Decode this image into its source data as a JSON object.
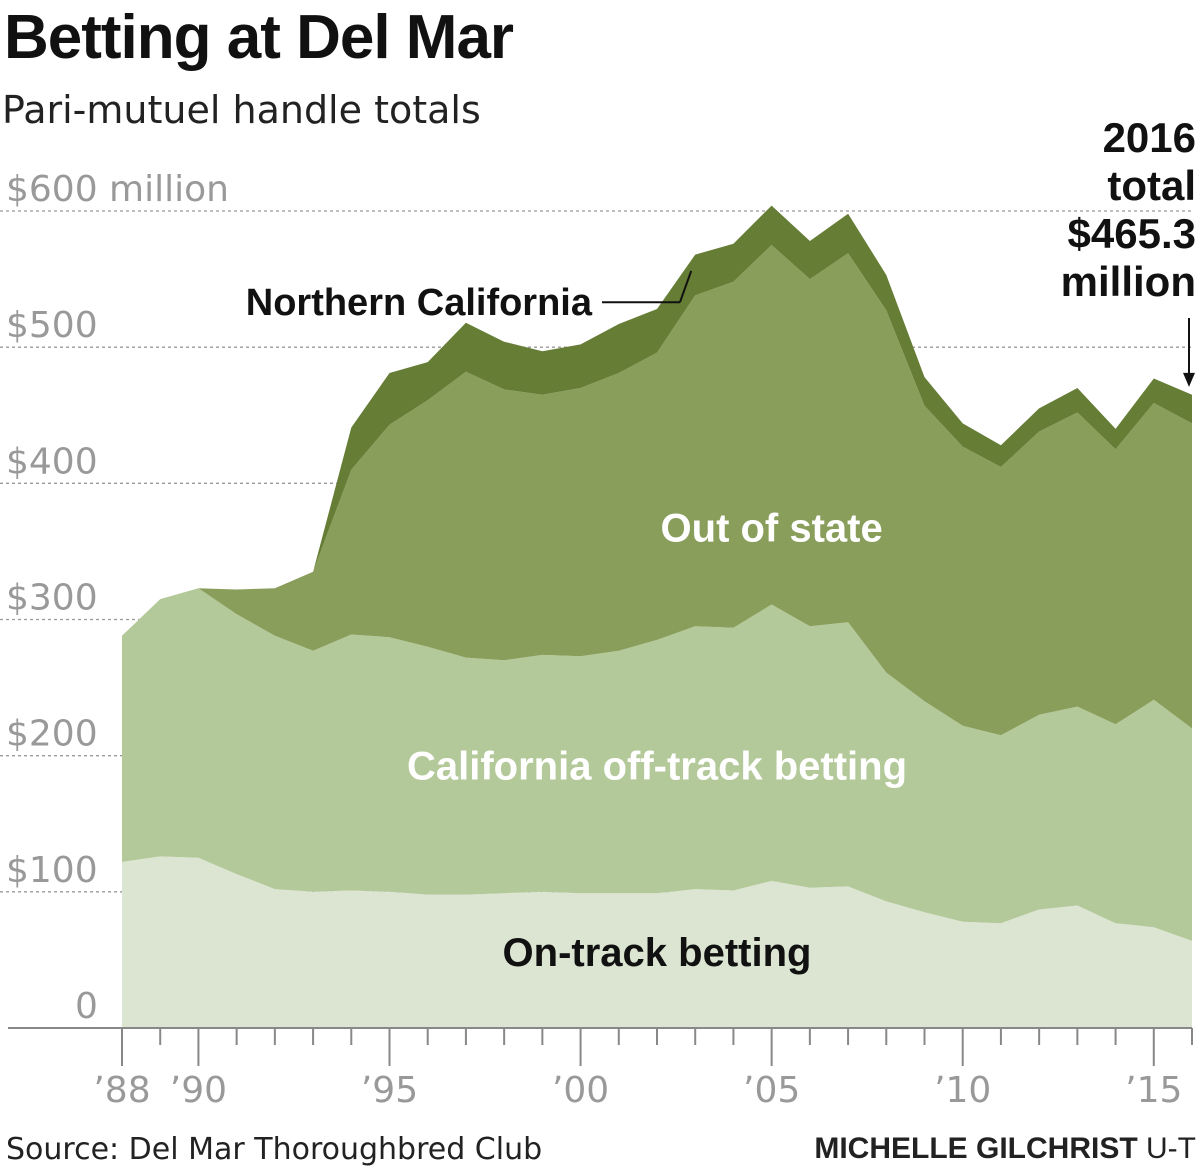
{
  "header": {
    "title": "Betting at Del Mar",
    "subtitle": "Pari-mutuel handle totals"
  },
  "footer": {
    "source": "Source: Del Mar Thoroughbred Club",
    "credit_name": "MICHELLE GILCHRIST",
    "credit_org": "U-T"
  },
  "annotation": {
    "lines": [
      "2016",
      "total",
      "$465.3",
      "million"
    ]
  },
  "colors": {
    "on_track": "#dbe5d2",
    "offtrack": "#b4c99a",
    "out_of_state": "#8a9e5c",
    "northern_california": "#667d36",
    "grid": "#999999",
    "axis": "#888888",
    "tick_text": "#999999"
  },
  "chart_data": {
    "type": "area",
    "stacked": true,
    "x": [
      1988,
      1989,
      1990,
      1991,
      1992,
      1993,
      1994,
      1995,
      1996,
      1997,
      1998,
      1999,
      2000,
      2001,
      2002,
      2003,
      2004,
      2005,
      2006,
      2007,
      2008,
      2009,
      2010,
      2011,
      2012,
      2013,
      2014,
      2015,
      2016
    ],
    "ylim": [
      0,
      600
    ],
    "yticks": [
      {
        "value": 0,
        "label": "0"
      },
      {
        "value": 100,
        "label": "$100"
      },
      {
        "value": 200,
        "label": "$200"
      },
      {
        "value": 300,
        "label": "$300"
      },
      {
        "value": 400,
        "label": "$400"
      },
      {
        "value": 500,
        "label": "$500"
      },
      {
        "value": 600,
        "label": "$600 million"
      }
    ],
    "xticks": [
      {
        "value": 1988,
        "label": "’88"
      },
      {
        "value": 1990,
        "label": "’90"
      },
      {
        "value": 1995,
        "label": "’95"
      },
      {
        "value": 2000,
        "label": "’00"
      },
      {
        "value": 2005,
        "label": "’05"
      },
      {
        "value": 2010,
        "label": "’10"
      },
      {
        "value": 2015,
        "label": "’15"
      }
    ],
    "series": [
      {
        "name": "On-track betting",
        "color_key": "on_track",
        "label_color": "#111111",
        "values": [
          122,
          126,
          125,
          113,
          102,
          100,
          101,
          100,
          98,
          98,
          99,
          100,
          99,
          99,
          99,
          102,
          101,
          108,
          103,
          104,
          93,
          85,
          78,
          77,
          87,
          90,
          77,
          74,
          64
        ]
      },
      {
        "name": "California off-track betting",
        "color_key": "offtrack",
        "label_color": "#ffffff",
        "values": [
          166,
          189,
          198,
          191,
          186,
          177,
          188,
          187,
          182,
          174,
          171,
          174,
          174,
          178,
          186,
          193,
          193,
          203,
          192,
          194,
          168,
          155,
          144,
          138,
          143,
          146,
          146,
          167,
          156
        ]
      },
      {
        "name": "Out of state",
        "color_key": "out_of_state",
        "label_color": "#ffffff",
        "values": [
          0,
          0,
          0,
          18,
          35,
          58,
          121,
          156,
          181,
          210,
          199,
          191,
          197,
          204,
          211,
          243,
          254,
          264,
          255,
          271,
          266,
          217,
          205,
          197,
          208,
          216,
          202,
          218,
          224
        ]
      },
      {
        "name": "Northern California",
        "color_key": "northern_california",
        "label_color": "#111111",
        "values": [
          0,
          0,
          0,
          0,
          0,
          0,
          31,
          38,
          28,
          36,
          35,
          32,
          32,
          36,
          32,
          30,
          28,
          29,
          28,
          29,
          26,
          21,
          17,
          16,
          17,
          18,
          15,
          18,
          21
        ]
      }
    ]
  }
}
